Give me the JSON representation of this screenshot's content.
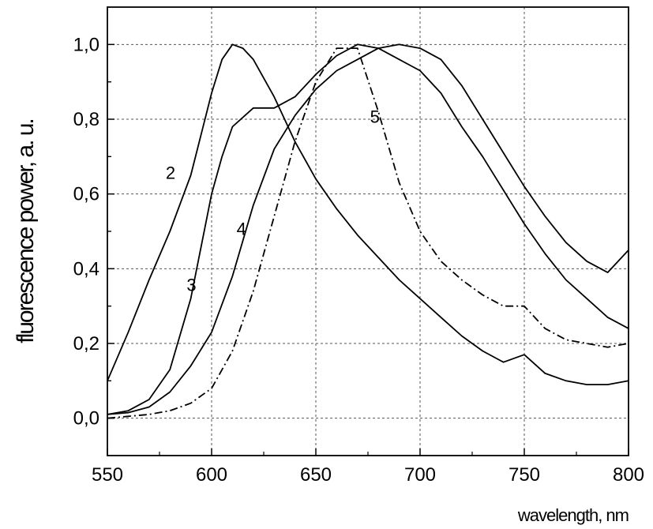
{
  "chart_data": {
    "type": "line",
    "title": "",
    "xlabel": "wavelength, nm",
    "ylabel": "fluorescence power, a. u.",
    "xlim": [
      550,
      800
    ],
    "ylim": [
      -0.1,
      1.1
    ],
    "xticks": [
      550,
      600,
      650,
      700,
      750,
      800
    ],
    "xtick_labels": [
      "550",
      "600",
      "650",
      "700",
      "750",
      "800"
    ],
    "yticks": [
      0.0,
      0.2,
      0.4,
      0.6,
      0.8,
      1.0
    ],
    "ytick_labels": [
      "0,0",
      "0,2",
      "0,4",
      "0,6",
      "0,8",
      "1,0"
    ],
    "grid": true,
    "legend": "none",
    "series": [
      {
        "name": "2",
        "style": "solid",
        "label_at": [
          578,
          0.64
        ],
        "x": [
          550,
          560,
          570,
          580,
          590,
          600,
          605,
          610,
          615,
          620,
          630,
          640,
          650,
          660,
          670,
          680,
          690,
          700,
          710,
          720,
          730,
          740,
          750,
          760,
          770,
          780,
          790,
          800
        ],
        "y": [
          0.1,
          0.23,
          0.37,
          0.5,
          0.65,
          0.87,
          0.96,
          1.0,
          0.99,
          0.96,
          0.86,
          0.74,
          0.64,
          0.56,
          0.49,
          0.43,
          0.37,
          0.32,
          0.27,
          0.22,
          0.18,
          0.15,
          0.17,
          0.12,
          0.1,
          0.09,
          0.09,
          0.1
        ]
      },
      {
        "name": "3",
        "style": "solid",
        "label_at": [
          588,
          0.34
        ],
        "x": [
          550,
          560,
          570,
          580,
          590,
          600,
          605,
          610,
          620,
          630,
          640,
          650,
          660,
          670,
          680,
          690,
          700,
          710,
          720,
          730,
          740,
          750,
          760,
          770,
          780,
          790,
          800
        ],
        "y": [
          0.01,
          0.02,
          0.05,
          0.13,
          0.32,
          0.6,
          0.7,
          0.78,
          0.83,
          0.83,
          0.86,
          0.92,
          0.97,
          1.0,
          0.99,
          0.96,
          0.93,
          0.87,
          0.78,
          0.7,
          0.61,
          0.52,
          0.44,
          0.37,
          0.32,
          0.27,
          0.24
        ]
      },
      {
        "name": "4",
        "style": "solid",
        "label_at": [
          612,
          0.49
        ],
        "x": [
          550,
          560,
          570,
          580,
          590,
          600,
          610,
          620,
          630,
          640,
          650,
          660,
          670,
          680,
          690,
          700,
          710,
          720,
          730,
          740,
          750,
          760,
          770,
          780,
          790,
          800
        ],
        "y": [
          0.01,
          0.015,
          0.03,
          0.07,
          0.14,
          0.23,
          0.38,
          0.57,
          0.72,
          0.81,
          0.88,
          0.93,
          0.96,
          0.99,
          1.0,
          0.99,
          0.96,
          0.89,
          0.8,
          0.71,
          0.62,
          0.54,
          0.47,
          0.42,
          0.39,
          0.45
        ]
      },
      {
        "name": "5",
        "style": "dashdot",
        "label_at": [
          676,
          0.79
        ],
        "x": [
          550,
          560,
          570,
          580,
          590,
          600,
          610,
          620,
          630,
          640,
          650,
          660,
          670,
          680,
          690,
          700,
          710,
          720,
          730,
          740,
          750,
          760,
          770,
          780,
          790,
          800
        ],
        "y": [
          0.0,
          0.005,
          0.01,
          0.02,
          0.04,
          0.08,
          0.18,
          0.34,
          0.54,
          0.74,
          0.9,
          0.99,
          0.99,
          0.82,
          0.63,
          0.5,
          0.42,
          0.37,
          0.33,
          0.3,
          0.3,
          0.24,
          0.21,
          0.2,
          0.19,
          0.2
        ]
      }
    ]
  }
}
